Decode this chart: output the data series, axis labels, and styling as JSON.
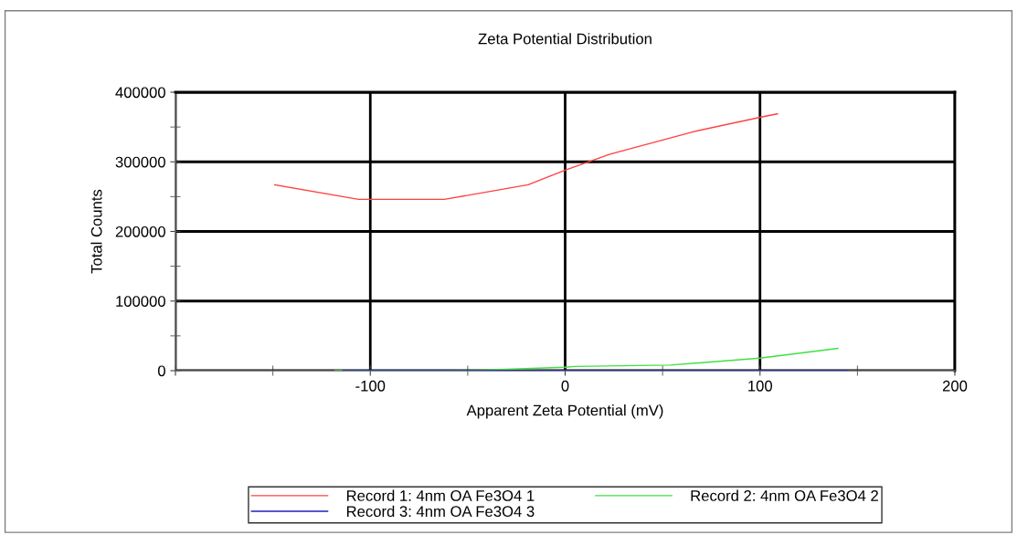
{
  "chart_data": {
    "type": "line",
    "title": "Zeta Potential Distribution",
    "xlabel": "Apparent Zeta Potential (mV)",
    "ylabel": "Total Counts",
    "xlim": [
      -200,
      200
    ],
    "xticks": [
      {
        "value": -200,
        "label": null
      },
      -100,
      0,
      100,
      200
    ],
    "ylim": [
      0,
      400000
    ],
    "yticks": [
      0,
      100000,
      200000,
      300000,
      400000
    ],
    "grid": true,
    "legend": "bottom",
    "line_style": "solid",
    "marker": "none",
    "series": [
      {
        "name": "Record 1: 4nm OA Fe3O4 1",
        "color": "#ff4040",
        "x": [
          -149,
          -106,
          -62,
          -19,
          0,
          23,
          67,
          100,
          109
        ],
        "values": [
          267000,
          246000,
          246000,
          267000,
          288000,
          311000,
          344000,
          364000,
          369000
        ]
      },
      {
        "name": "Record 2: 4nm OA Fe3O4 2",
        "color": "#40e040",
        "x": [
          -118,
          -65,
          -41,
          0,
          5,
          54,
          100,
          140
        ],
        "values": [
          0,
          0,
          1000,
          5000,
          6000,
          8000,
          18000,
          32000
        ]
      },
      {
        "name": "Record 3: 4nm OA Fe3O4 3",
        "color": "#2020c0",
        "x": [
          -114,
          145
        ],
        "values": [
          0,
          0
        ]
      }
    ]
  }
}
